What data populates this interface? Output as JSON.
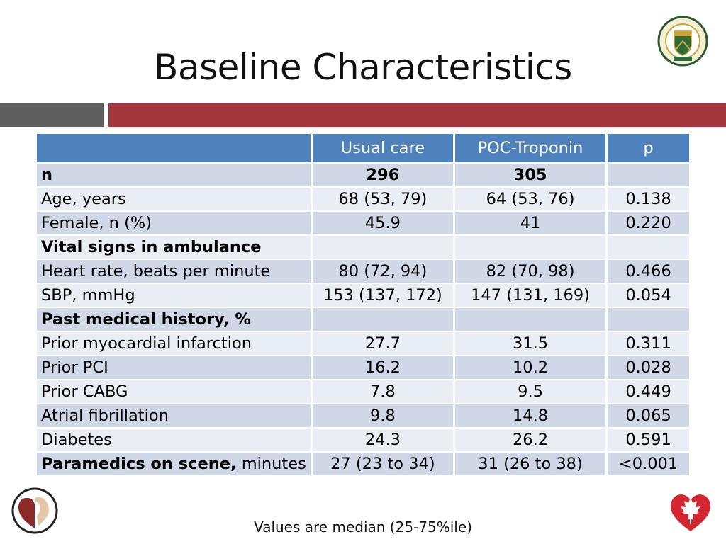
{
  "slide": {
    "title": "Baseline Characteristics",
    "footnote": "Values are median (25-75%ile)"
  },
  "table": {
    "headers": [
      "",
      "Usual care",
      "POC-Troponin",
      "p"
    ],
    "rows": [
      {
        "label": "n",
        "bold_label": true,
        "usual": "296",
        "poc": "305",
        "p": "",
        "bold_values": true
      },
      {
        "label": "Age, years",
        "usual": "68 (53, 79)",
        "poc": "64 (53, 76)",
        "p": "0.138"
      },
      {
        "label": "Female, n (%)",
        "usual": "45.9",
        "poc": "41",
        "p": "0.220"
      },
      {
        "label": "Vital signs in ambulance",
        "bold_label": true,
        "usual": "",
        "poc": "",
        "p": ""
      },
      {
        "label": "Heart rate, beats per minute",
        "usual": "80 (72, 94)",
        "poc": "82 (70, 98)",
        "p": "0.466"
      },
      {
        "label": "SBP, mmHg",
        "usual": "153 (137, 172)",
        "poc": "147 (131, 169)",
        "p": "0.054"
      },
      {
        "label": "Past medical history, %",
        "bold_label": true,
        "usual": "",
        "poc": "",
        "p": ""
      },
      {
        "label": "Prior myocardial infarction",
        "usual": "27.7",
        "poc": "31.5",
        "p": "0.311"
      },
      {
        "label": "Prior PCI",
        "usual": "16.2",
        "poc": "10.2",
        "p": "0.028"
      },
      {
        "label": "Prior CABG",
        "usual": "7.8",
        "poc": "9.5",
        "p": "0.449"
      },
      {
        "label": "Atrial fibrillation",
        "usual": "9.8",
        "poc": "14.8",
        "p": "0.065"
      },
      {
        "label": "Diabetes",
        "usual": "24.3",
        "poc": "26.2",
        "p": "0.591"
      },
      {
        "label": "Paramedics on scene,",
        "label_suffix": " minutes",
        "bold_label": true,
        "usual": "27 (23 to 34)",
        "poc": "31 (26 to 38)",
        "p": "<0.001"
      }
    ]
  },
  "logos": {
    "university": "university-of-alberta-crest",
    "left_bottom": "heart-face-logo",
    "right_bottom": "heart-and-stroke-maple-leaf-logo"
  },
  "colors": {
    "header_blue": "#4f81bd",
    "row_dark": "#d0d8e8",
    "row_light": "#e9edf4",
    "accent_red": "#a3353c",
    "accent_gray": "#5f5f5f"
  }
}
